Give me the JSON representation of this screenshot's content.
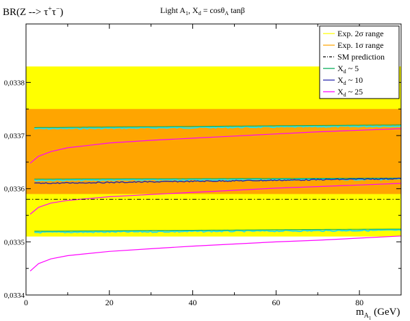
{
  "chart_data": {
    "type": "line",
    "title": "Light A<sub>1</sub>, X<sub>d</sub> = cosθ<sub>A</sub> tanβ",
    "title_parts": {
      "line1": "Light A",
      "sub1": "1",
      "line2": ", X",
      "sub2": "d",
      "line3": " = cosθ",
      "sub3": "A",
      "line4": " tanβ"
    },
    "ylabel": "BR(Z --> τ⁺τ⁻)",
    "ylabel_parts": {
      "base": "BR(Z --> τ",
      "sup1": "+",
      "mid": "τ",
      "sup2": "−",
      "end": ")"
    },
    "xlabel_parts": {
      "base": "m",
      "sub": "A",
      "subsub": "1",
      "unit": " (GeV)"
    },
    "xlim": [
      0,
      90
    ],
    "ylim": [
      0.0334,
      0.03391
    ],
    "x_ticks": [
      0,
      20,
      40,
      60,
      80
    ],
    "x_tick_labels": [
      "0",
      "20",
      "40",
      "60",
      "80"
    ],
    "y_ticks": [
      0.0334,
      0.0335,
      0.0336,
      0.0337,
      0.0338
    ],
    "y_tick_labels": [
      "0,0334",
      "0,0335",
      "0,0336",
      "0,0337",
      "0,0338"
    ],
    "bands": [
      {
        "name": "Exp. 2σ range",
        "color": "#ffff00",
        "y0": 0.03351,
        "y1": 0.03383
      },
      {
        "name": "Exp. 1σ range",
        "color": "#ffa500",
        "y0": 0.03359,
        "y1": 0.03375
      }
    ],
    "sm_prediction": {
      "name": "SM prediction",
      "y": 0.03358
    },
    "series": [
      {
        "name": "X_d ~ 5",
        "color": "#00aa55",
        "style": "flat",
        "curves": [
          {
            "x": [
              2,
              90
            ],
            "y": [
              0.033715,
              0.03372
            ]
          },
          {
            "x": [
              2,
              90
            ],
            "y": [
              0.033618,
              0.03362
            ]
          },
          {
            "x": [
              2,
              90
            ],
            "y": [
              0.03352,
              0.033524
            ]
          }
        ]
      },
      {
        "name": "X_d ~ 10",
        "color": "#2222aa",
        "style": "flat",
        "curves": [
          {
            "x": [
              2,
              90
            ],
            "y": [
              0.03361,
              0.033619
            ]
          }
        ]
      },
      {
        "name": "X_d ~ 25",
        "color": "#ff00ff",
        "style": "rising",
        "curves": [
          {
            "x": [
              1,
              3,
              6,
              10,
              20,
              30,
              40,
              50,
              60,
              70,
              80,
              90
            ],
            "y": [
              0.033648,
              0.033661,
              0.03367,
              0.033677,
              0.033686,
              0.033691,
              0.033695,
              0.033699,
              0.033703,
              0.033707,
              0.03371,
              0.033713
            ]
          },
          {
            "x": [
              1,
              3,
              6,
              10,
              20,
              30,
              40,
              50,
              60,
              70,
              80,
              90
            ],
            "y": [
              0.033552,
              0.033565,
              0.033573,
              0.033578,
              0.033585,
              0.033589,
              0.033593,
              0.033597,
              0.033601,
              0.033604,
              0.033607,
              0.03361
            ]
          },
          {
            "x": [
              1,
              3,
              6,
              10,
              20,
              30,
              40,
              50,
              60,
              70,
              80,
              90
            ],
            "y": [
              0.033445,
              0.033459,
              0.033468,
              0.033474,
              0.033482,
              0.033487,
              0.033492,
              0.033496,
              0.0335,
              0.033503,
              0.033507,
              0.033511
            ]
          }
        ]
      }
    ],
    "cyan_noise_color": "#33dddd",
    "legend_position": "top-right",
    "legend": [
      {
        "label": "Exp. 2σ range",
        "color": "#ffff00",
        "kind": "line"
      },
      {
        "label": "Exp. 1σ range",
        "color": "#ffa500",
        "kind": "line"
      },
      {
        "label": "SM prediction",
        "color": "#000000",
        "kind": "dashdot"
      },
      {
        "label": "X",
        "sub": "d",
        "tail": " ~ 5",
        "color": "#00aa55",
        "kind": "line"
      },
      {
        "label": "X",
        "sub": "d",
        "tail": " ~ 10",
        "color": "#2222aa",
        "kind": "line"
      },
      {
        "label": "X",
        "sub": "d",
        "tail": " ~ 25",
        "color": "#ff00ff",
        "kind": "line"
      }
    ],
    "grid": false
  }
}
